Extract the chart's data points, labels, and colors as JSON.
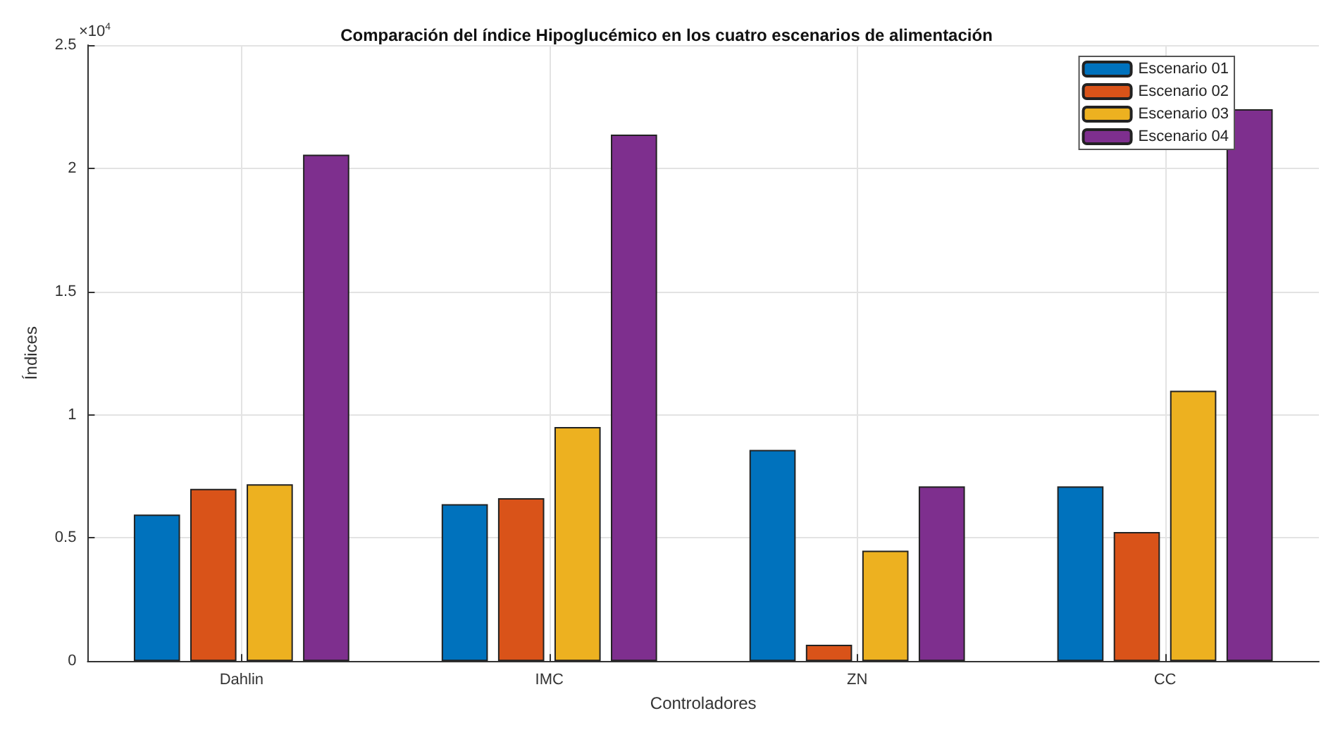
{
  "chart_data": {
    "type": "bar",
    "title": "Comparación del índice Hipoglucémico en los cuatro escenarios de alimentación",
    "xlabel": "Controladores",
    "ylabel": "Índices",
    "annotations": [
      "×10$^{4}$"
    ],
    "categories": [
      "Dahlin",
      "IMC",
      "ZN",
      "CC"
    ],
    "series": [
      {
        "name": "Escenario 01",
        "color": "#0072bd",
        "values": [
          0.595,
          0.637,
          0.857,
          0.709
        ]
      },
      {
        "name": "Escenario 02",
        "color": "#d95319",
        "values": [
          0.699,
          0.661,
          0.066,
          0.524
        ]
      },
      {
        "name": "Escenario 03",
        "color": "#edb120",
        "values": [
          0.718,
          0.95,
          0.448,
          1.097
        ]
      },
      {
        "name": "Escenario 04",
        "color": "#7e2f8e",
        "values": [
          2.055,
          2.137,
          0.709,
          2.24
        ]
      }
    ],
    "ylim": [
      0,
      2.5
    ],
    "yticks": [
      0,
      0.5,
      1,
      1.5,
      2,
      2.5
    ],
    "grid": true,
    "legend": "top right"
  }
}
